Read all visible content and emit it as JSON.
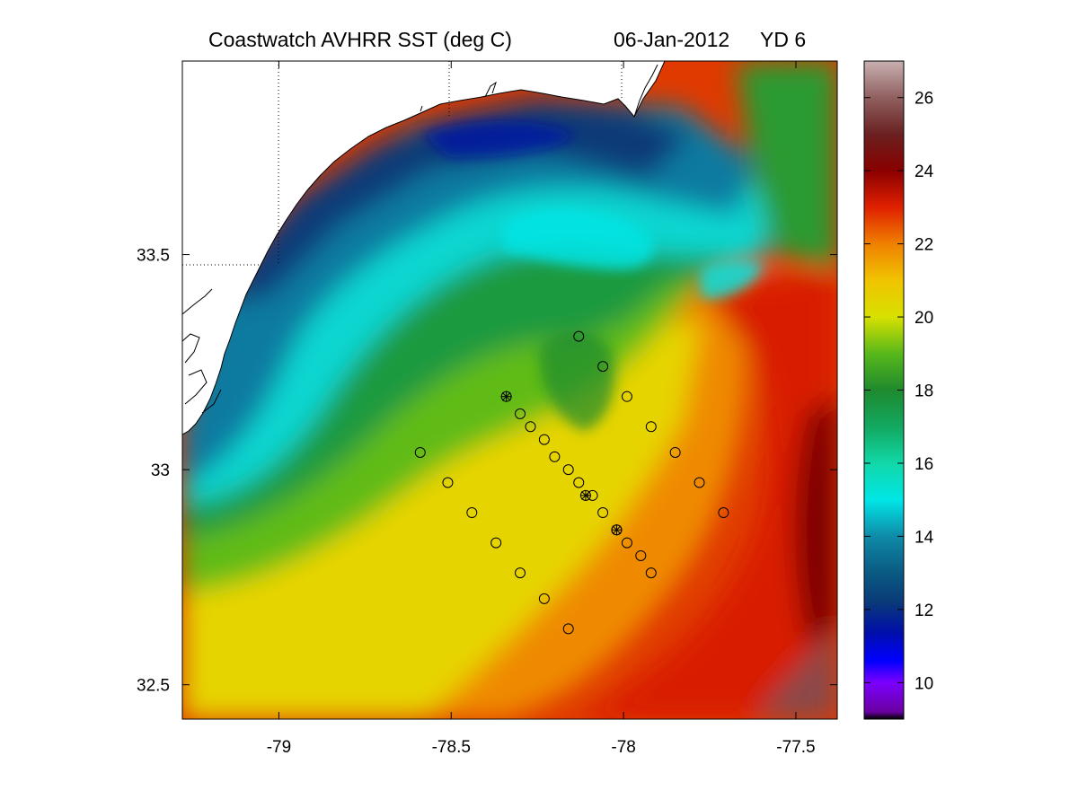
{
  "title": {
    "product": "Coastwatch   AVHRR   SST  (deg C)",
    "date": "06-Jan-2012",
    "yearday": "YD 6"
  },
  "map": {
    "lon_range": [
      -79.28,
      -77.38
    ],
    "lat_range": [
      32.42,
      33.95
    ],
    "x_ticks": [
      {
        "value": -79,
        "label": "-79"
      },
      {
        "value": -78.5,
        "label": "-78.5"
      },
      {
        "value": -78,
        "label": "-78"
      },
      {
        "value": -77.5,
        "label": "-77.5"
      }
    ],
    "y_ticks": [
      {
        "value": 33.5,
        "label": "33.5"
      },
      {
        "value": 33,
        "label": "33"
      },
      {
        "value": 32.5,
        "label": "32.5"
      }
    ],
    "colors": {
      "land": "#ffffff",
      "coastline": "#000000",
      "grid": "#000000"
    }
  },
  "colorbar": {
    "range": [
      9,
      27
    ],
    "ticks": [
      {
        "value": 10,
        "label": "10"
      },
      {
        "value": 12,
        "label": "12"
      },
      {
        "value": 14,
        "label": "14"
      },
      {
        "value": 16,
        "label": "16"
      },
      {
        "value": 18,
        "label": "18"
      },
      {
        "value": 20,
        "label": "20"
      },
      {
        "value": 22,
        "label": "22"
      },
      {
        "value": 24,
        "label": "24"
      },
      {
        "value": 26,
        "label": "26"
      }
    ],
    "palette": [
      {
        "v": 9.0,
        "c": "#000000"
      },
      {
        "v": 9.2,
        "c": "#6a00a0"
      },
      {
        "v": 10.0,
        "c": "#7b00ff"
      },
      {
        "v": 10.6,
        "c": "#0000ff"
      },
      {
        "v": 11.4,
        "c": "#0010a8"
      },
      {
        "v": 12.2,
        "c": "#0a3a78"
      },
      {
        "v": 13.0,
        "c": "#0a5a82"
      },
      {
        "v": 14.0,
        "c": "#0f8aa8"
      },
      {
        "v": 15.0,
        "c": "#00e6e6"
      },
      {
        "v": 16.0,
        "c": "#12d8a8"
      },
      {
        "v": 17.0,
        "c": "#12a860"
      },
      {
        "v": 18.0,
        "c": "#1f8a2e"
      },
      {
        "v": 19.0,
        "c": "#58b81a"
      },
      {
        "v": 20.0,
        "c": "#d8e000"
      },
      {
        "v": 21.0,
        "c": "#f0c400"
      },
      {
        "v": 22.0,
        "c": "#f08000"
      },
      {
        "v": 23.0,
        "c": "#e02000"
      },
      {
        "v": 24.0,
        "c": "#8a0000"
      },
      {
        "v": 25.0,
        "c": "#6a2020"
      },
      {
        "v": 26.0,
        "c": "#906060"
      },
      {
        "v": 27.0,
        "c": "#c8b0b0"
      }
    ]
  },
  "stations": {
    "circles": [
      [
        -78.13,
        33.31
      ],
      [
        -78.06,
        33.24
      ],
      [
        -77.99,
        33.17
      ],
      [
        -77.92,
        33.1
      ],
      [
        -77.85,
        33.04
      ],
      [
        -77.78,
        32.97
      ],
      [
        -77.71,
        32.9
      ],
      [
        -78.3,
        33.13
      ],
      [
        -78.27,
        33.1
      ],
      [
        -78.23,
        33.07
      ],
      [
        -78.2,
        33.03
      ],
      [
        -78.16,
        33.0
      ],
      [
        -78.13,
        32.97
      ],
      [
        -78.09,
        32.94
      ],
      [
        -78.06,
        32.9
      ],
      [
        -78.02,
        32.86
      ],
      [
        -77.99,
        32.83
      ],
      [
        -77.95,
        32.8
      ],
      [
        -77.92,
        32.76
      ],
      [
        -78.59,
        33.04
      ],
      [
        -78.51,
        32.97
      ],
      [
        -78.44,
        32.9
      ],
      [
        -78.37,
        32.83
      ],
      [
        -78.3,
        32.76
      ],
      [
        -78.23,
        32.7
      ],
      [
        -78.16,
        32.63
      ]
    ],
    "starred": [
      [
        -78.34,
        33.17
      ],
      [
        -78.11,
        32.94
      ],
      [
        -78.02,
        32.86
      ]
    ]
  }
}
